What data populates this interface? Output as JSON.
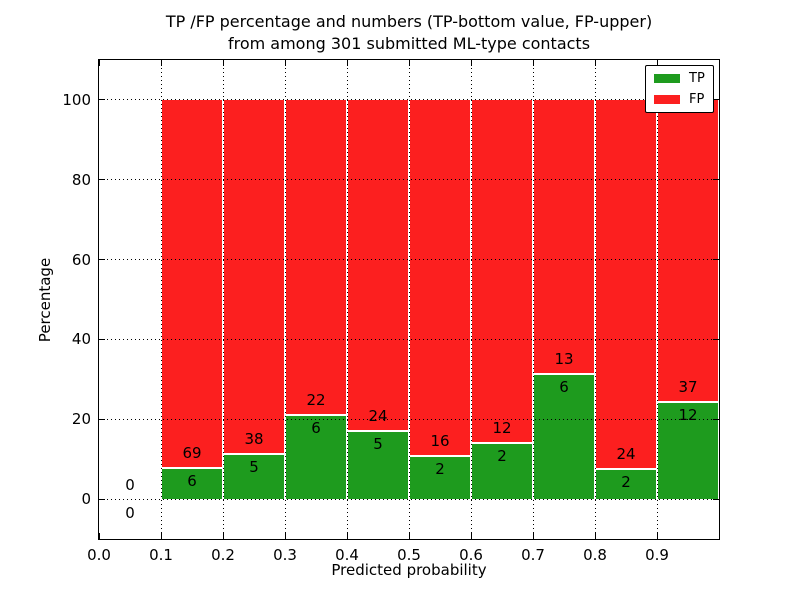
{
  "title": {
    "line1": "TP /FP percentage and numbers (TP-bottom value, FP-upper)",
    "line2": "from among 301 submitted ML-type contacts"
  },
  "axes": {
    "xlabel": "Predicted probability",
    "ylabel": "Percentage",
    "x_tick_labels": [
      "0.0",
      "0.1",
      "0.2",
      "0.3",
      "0.4",
      "0.5",
      "0.6",
      "0.7",
      "0.8",
      "0.9"
    ],
    "x_tick_values": [
      0.0,
      0.1,
      0.2,
      0.3,
      0.4,
      0.5,
      0.6,
      0.7,
      0.8,
      0.9
    ],
    "y_tick_labels": [
      "0",
      "20",
      "40",
      "60",
      "80",
      "100"
    ],
    "y_tick_values": [
      0,
      20,
      40,
      60,
      80,
      100
    ],
    "xlim": [
      0.0,
      1.0
    ],
    "ylim": [
      -10,
      110
    ],
    "grid_style": "dotted"
  },
  "legend": {
    "position": "upper-right",
    "entries": [
      {
        "label": "TP",
        "color": "#1e9b1e"
      },
      {
        "label": "FP",
        "color": "#fc1f1f"
      }
    ]
  },
  "chart_data": {
    "type": "bar",
    "stacked": true,
    "normalized": "each bin stacks to 100 percent",
    "title": "TP /FP percentage and numbers (TP-bottom value, FP-upper) from among 301 submitted ML-type contacts",
    "xlabel": "Predicted probability",
    "ylabel": "Percentage",
    "total_contacts": 301,
    "bin_width": 0.1,
    "categories": [
      0.0,
      0.1,
      0.2,
      0.3,
      0.4,
      0.5,
      0.6,
      0.7,
      0.8,
      0.9
    ],
    "series": [
      {
        "name": "TP",
        "color": "#1e9b1e",
        "counts": [
          0,
          6,
          5,
          6,
          5,
          2,
          2,
          6,
          2,
          12
        ]
      },
      {
        "name": "FP",
        "color": "#fc1f1f",
        "counts": [
          0,
          69,
          38,
          22,
          24,
          16,
          12,
          13,
          24,
          37
        ]
      }
    ],
    "ylim": [
      -10,
      110
    ],
    "grid": true,
    "legend_position": "upper-right"
  },
  "colors": {
    "tp": "#1e9b1e",
    "fp": "#fc1f1f",
    "grid": "#000000",
    "background": "#ffffff",
    "text": "#000000",
    "bar_edge": "#ffffff"
  }
}
